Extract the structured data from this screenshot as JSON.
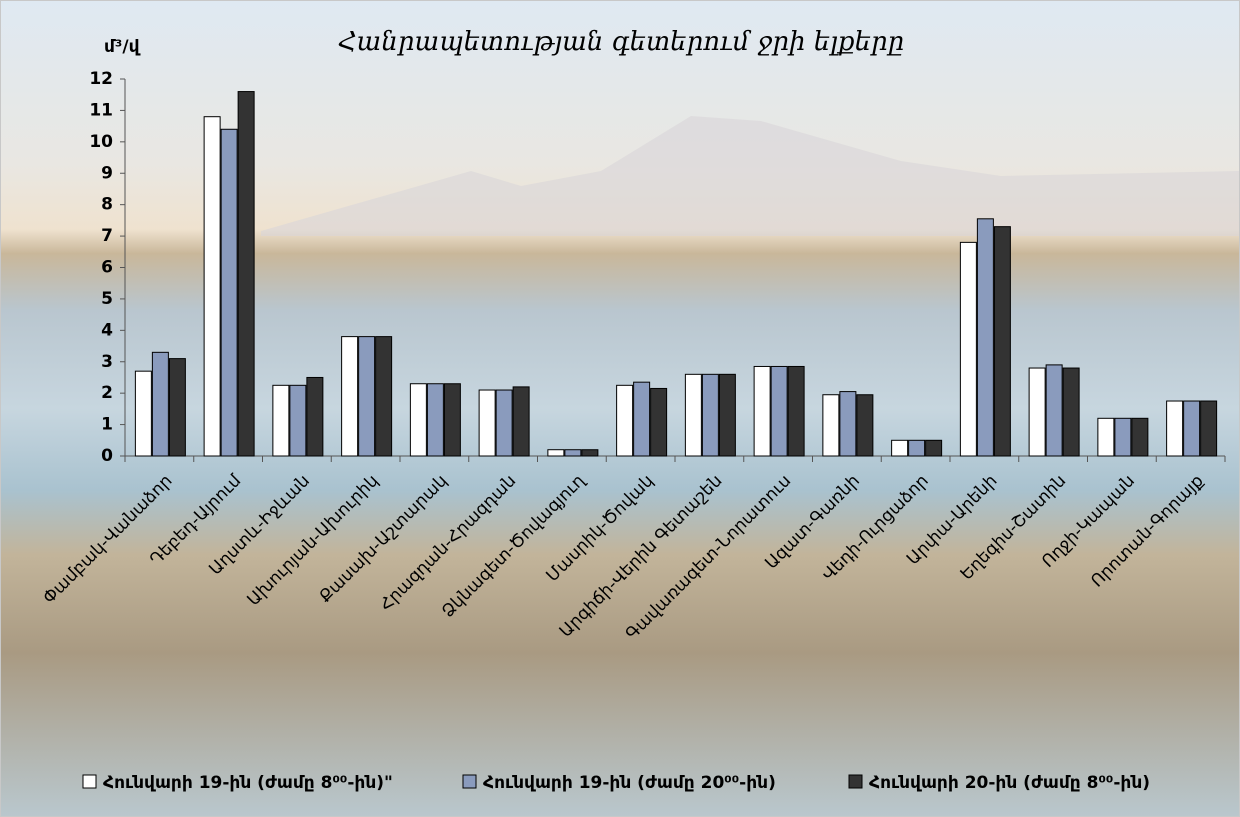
{
  "chart_data": {
    "type": "bar",
    "title": "Հանրապետության գետերում ջրի ելքերը",
    "y_label": "մ³/վ",
    "categories": [
      "Փամբակ-Վանաձոր",
      "Դեբեդ-Այրում",
      "Աղստև-Իջևան",
      "Ախուրյան-Ախուրիկ",
      "Քասախ-Աշտարակ",
      "Հրազդան-Հրազդան",
      "Ձկնագետ-Ծովագյուղ",
      "Մասրիկ-Ծովակ",
      "Արգիճի-Վերին Գետաշեն",
      "Գավառագետ-Նորատուս",
      "Ազատ-Գառնի",
      "Վեդի-Ուրցաձոր",
      "Արփա-Արենի",
      "Եղեգիս-Շատին",
      "Ողջի-Կապան",
      "Որոտան-Գորայք"
    ],
    "series": [
      {
        "name": "Հունվարի 19-ին (ժամը 8⁰⁰-ին)\"",
        "color": "#ffffff",
        "values": [
          2.7,
          10.8,
          2.25,
          3.8,
          2.3,
          2.1,
          0.2,
          2.25,
          2.6,
          2.85,
          1.95,
          0.5,
          6.8,
          2.8,
          1.2,
          1.75
        ]
      },
      {
        "name": "Հունվարի 19-ին (ժամը 20⁰⁰-ին)",
        "color": "#8a9bbd",
        "values": [
          3.3,
          10.4,
          2.25,
          3.8,
          2.3,
          2.1,
          0.2,
          2.35,
          2.6,
          2.85,
          2.05,
          0.5,
          7.55,
          2.9,
          1.2,
          1.75
        ]
      },
      {
        "name": "Հունվարի 20-ին (ժամը 8⁰⁰-ին)",
        "color": "#333333",
        "values": [
          3.1,
          11.6,
          2.5,
          3.8,
          2.3,
          2.2,
          0.2,
          2.15,
          2.6,
          2.85,
          1.95,
          0.5,
          7.3,
          2.8,
          1.2,
          1.75
        ]
      }
    ],
    "ylim": [
      0,
      12
    ],
    "yticks": [
      0,
      1,
      2,
      3,
      4,
      5,
      6,
      7,
      8,
      9,
      10,
      11,
      12
    ],
    "grid": false,
    "legend": "bottom"
  }
}
